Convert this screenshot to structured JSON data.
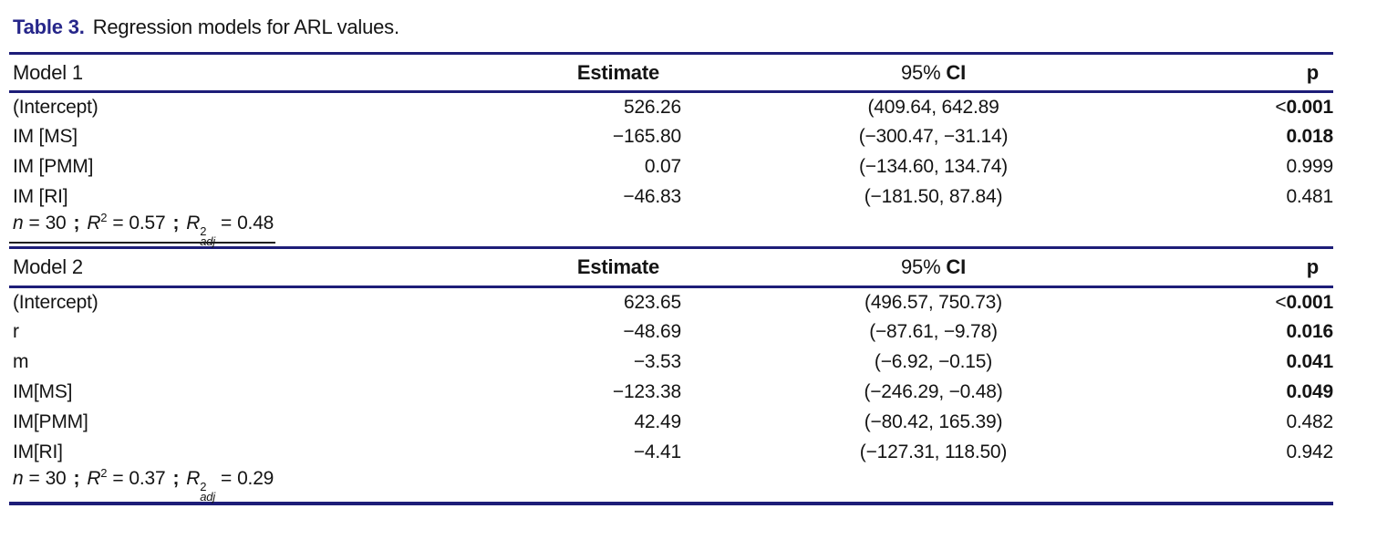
{
  "caption": {
    "label": "Table 3.",
    "text": "Regression models for ARL values."
  },
  "columns": {
    "estimate": "Estimate",
    "ci_regular": "95%",
    "ci_bold": "CI",
    "p": "p"
  },
  "stats_labels": {
    "n": "n",
    "eq": "=",
    "sep": ";",
    "r": "R",
    "sup": "2",
    "adj": "adj"
  },
  "models": [
    {
      "name": "Model 1",
      "rows": [
        {
          "term": "(Intercept)",
          "estimate": "526.26",
          "ci": "(409.64, 642.89",
          "p_prefix": "<",
          "p": "0.001",
          "p_bold": true
        },
        {
          "term": "IM [MS]",
          "estimate": "−165.80",
          "ci": "(−300.47, −31.14)",
          "p": "0.018",
          "p_bold": true
        },
        {
          "term": "IM [PMM]",
          "estimate": "0.07",
          "ci": "(−134.60, 134.74)",
          "p": "0.999",
          "p_bold": false
        },
        {
          "term": "IM [RI]",
          "estimate": "−46.83",
          "ci": "(−181.50, 87.84)",
          "p": "0.481",
          "p_bold": false
        }
      ],
      "stats": {
        "n": "30",
        "r2": "0.57",
        "r2_adj": "0.48",
        "underline": true
      }
    },
    {
      "name": "Model 2",
      "rows": [
        {
          "term": "(Intercept)",
          "estimate": "623.65",
          "ci": "(496.57, 750.73)",
          "p_prefix": "<",
          "p": "0.001",
          "p_bold": true
        },
        {
          "term": "r",
          "estimate": "−48.69",
          "ci": "(−87.61, −9.78)",
          "p": "0.016",
          "p_bold": true
        },
        {
          "term": "m",
          "estimate": "−3.53",
          "ci": "(−6.92, −0.15)",
          "p": "0.041",
          "p_bold": true
        },
        {
          "term": "IM[MS]",
          "estimate": "−123.38",
          "ci": "(−246.29, −0.48)",
          "p": "0.049",
          "p_bold": true
        },
        {
          "term": "IM[PMM]",
          "estimate": "42.49",
          "ci": "(−80.42, 165.39)",
          "p": "0.482",
          "p_bold": false
        },
        {
          "term": "IM[RI]",
          "estimate": "−4.41",
          "ci": "(−127.31, 118.50)",
          "p": "0.942",
          "p_bold": false
        }
      ],
      "stats": {
        "n": "30",
        "r2": "0.37",
        "r2_adj": "0.29",
        "underline": false
      }
    }
  ],
  "colors": {
    "rule_navy": "#1d1d78",
    "title_navy": "#26268a",
    "text": "#141414"
  }
}
